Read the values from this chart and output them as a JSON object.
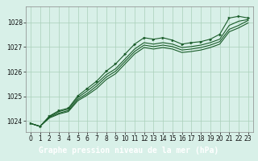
{
  "title": "Graphe pression niveau de la mer (hPa)",
  "bg_color": "#cce8d8",
  "plot_bg_color": "#d8f0e8",
  "label_bg_color": "#4a8c5c",
  "grid_color": "#aacfba",
  "line_color": "#1a5c2a",
  "xlim": [
    -0.5,
    23.5
  ],
  "ylim": [
    1023.55,
    1028.65
  ],
  "xticks": [
    0,
    1,
    2,
    3,
    4,
    5,
    6,
    7,
    8,
    9,
    10,
    11,
    12,
    13,
    14,
    15,
    16,
    17,
    18,
    19,
    20,
    21,
    22,
    23
  ],
  "yticks": [
    1024,
    1025,
    1026,
    1027,
    1028
  ],
  "line1_x": [
    0,
    1,
    2,
    3,
    4,
    5,
    6,
    7,
    8,
    9,
    10,
    11,
    12,
    13,
    14,
    15,
    16,
    17,
    18,
    19,
    20,
    21,
    22,
    23
  ],
  "line1": [
    1023.9,
    1023.78,
    1024.2,
    1024.42,
    1024.52,
    1025.02,
    1025.32,
    1025.62,
    1026.02,
    1026.32,
    1026.72,
    1027.12,
    1027.38,
    1027.32,
    1027.38,
    1027.28,
    1027.12,
    1027.18,
    1027.22,
    1027.32,
    1027.52,
    1028.18,
    1028.25,
    1028.18
  ],
  "line2": [
    1023.9,
    1023.78,
    1024.18,
    1024.38,
    1024.48,
    1024.95,
    1025.22,
    1025.52,
    1025.88,
    1026.12,
    1026.52,
    1026.92,
    1027.18,
    1027.12,
    1027.18,
    1027.12,
    1026.98,
    1027.02,
    1027.08,
    1027.18,
    1027.32,
    1027.88,
    1028.05,
    1028.12
  ],
  "line3": [
    1023.9,
    1023.78,
    1024.15,
    1024.32,
    1024.42,
    1024.88,
    1025.12,
    1025.42,
    1025.78,
    1026.02,
    1026.42,
    1026.82,
    1027.08,
    1027.02,
    1027.08,
    1027.02,
    1026.88,
    1026.92,
    1026.98,
    1027.08,
    1027.22,
    1027.72,
    1027.88,
    1028.08
  ],
  "line4": [
    1023.9,
    1023.78,
    1024.12,
    1024.28,
    1024.38,
    1024.82,
    1025.05,
    1025.32,
    1025.68,
    1025.92,
    1026.32,
    1026.72,
    1026.98,
    1026.92,
    1026.98,
    1026.92,
    1026.78,
    1026.82,
    1026.88,
    1026.98,
    1027.12,
    1027.62,
    1027.78,
    1027.98
  ],
  "title_fontsize": 7,
  "tick_fontsize": 5.5
}
